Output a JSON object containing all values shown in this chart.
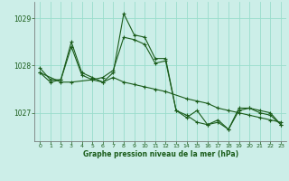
{
  "background_color": "#cceee8",
  "grid_color": "#99ddcc",
  "line_color": "#1a5c1a",
  "xlabel": "Graphe pression niveau de la mer (hPa)",
  "ylim": [
    1026.4,
    1029.35
  ],
  "xlim": [
    -0.5,
    23.5
  ],
  "yticks": [
    1027,
    1028,
    1029
  ],
  "xticks": [
    0,
    1,
    2,
    3,
    4,
    5,
    6,
    7,
    8,
    9,
    10,
    11,
    12,
    13,
    14,
    15,
    16,
    17,
    18,
    19,
    20,
    21,
    22,
    23
  ],
  "series": [
    {
      "x": [
        0,
        1,
        2,
        3,
        4,
        5,
        6,
        7,
        8,
        9,
        10,
        11,
        12,
        13,
        14,
        15,
        16,
        17,
        18,
        19,
        20,
        21,
        22,
        23
      ],
      "y": [
        1027.95,
        1027.7,
        1027.7,
        1028.5,
        1027.85,
        1027.75,
        1027.65,
        1027.85,
        1029.1,
        1028.65,
        1028.6,
        1028.15,
        1028.15,
        1027.05,
        1026.9,
        1027.05,
        1026.75,
        1026.85,
        1026.65,
        1027.05,
        1027.1,
        1027.05,
        1027.0,
        1026.75
      ]
    },
    {
      "x": [
        0,
        1,
        2,
        3,
        4,
        5,
        6,
        7,
        8,
        9,
        10,
        11,
        12,
        13,
        14,
        15,
        16,
        17,
        18,
        19,
        20,
        21,
        22,
        23
      ],
      "y": [
        1027.85,
        1027.65,
        1027.7,
        1028.4,
        1027.8,
        1027.7,
        1027.75,
        1027.9,
        1028.6,
        1028.55,
        1028.45,
        1028.05,
        1028.1,
        1027.05,
        1026.95,
        1026.8,
        1026.75,
        1026.8,
        1026.65,
        1027.1,
        1027.1,
        1027.0,
        1026.95,
        1026.75
      ]
    },
    {
      "x": [
        0,
        2,
        3,
        5,
        6,
        7,
        8,
        9,
        10,
        11,
        12,
        14,
        15,
        16,
        17,
        18,
        19,
        20,
        21,
        22,
        23
      ],
      "y": [
        1027.85,
        1027.65,
        1027.65,
        1027.7,
        1027.65,
        1027.75,
        1027.65,
        1027.6,
        1027.55,
        1027.5,
        1027.45,
        1027.3,
        1027.25,
        1027.2,
        1027.1,
        1027.05,
        1027.0,
        1026.95,
        1026.9,
        1026.85,
        1026.8
      ]
    }
  ]
}
